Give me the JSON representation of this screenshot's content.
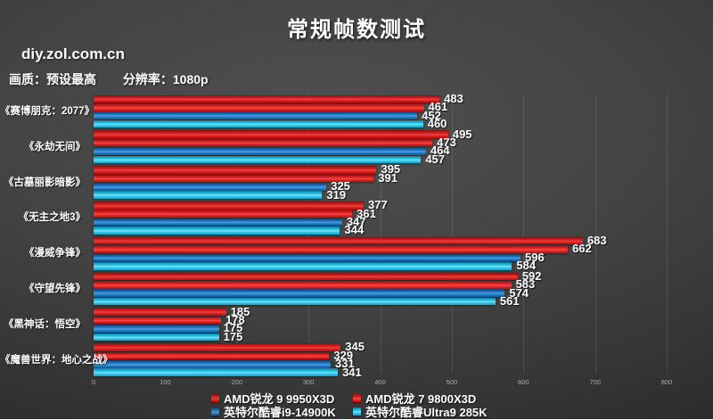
{
  "title": "常规帧数测试",
  "watermark": "diy.zol.com.cn",
  "settings": {
    "quality": "画质：预设最高",
    "resolution": "分辨率：1080p"
  },
  "chart_data": {
    "type": "bar",
    "orientation": "horizontal",
    "title": "常规帧数测试",
    "xlabel": "",
    "ylabel": "",
    "xlim": [
      0,
      800
    ],
    "x_ticks": [
      0,
      100,
      200,
      300,
      400,
      500,
      600,
      700,
      800
    ],
    "grid": "faint-vertical-gridlines",
    "legend_position": "bottom",
    "categories": [
      "《赛博朋克：2077》",
      "《永劫无间》",
      "《古墓丽影暗影》",
      "《无主之地3》",
      "《漫威争锋》",
      "《守望先锋》",
      "《黑神话：悟空》",
      "《魔兽世界：地心之战》"
    ],
    "series": [
      {
        "name": "AMD锐龙 9 9950X3D",
        "color": "#d81e1e",
        "values": [
          483,
          495,
          395,
          377,
          683,
          592,
          185,
          345
        ]
      },
      {
        "name": "AMD锐龙 7 9800X3D",
        "color": "#e42424",
        "values": [
          461,
          473,
          391,
          361,
          662,
          583,
          178,
          329
        ]
      },
      {
        "name": "英特尔酷睿i9-14900K",
        "color": "#1f7cc9",
        "values": [
          452,
          464,
          325,
          347,
          596,
          574,
          175,
          331
        ]
      },
      {
        "name": "英特尔酷睿Ultra9 285K",
        "color": "#2bc9ec",
        "values": [
          460,
          457,
          319,
          344,
          584,
          561,
          175,
          341
        ]
      }
    ]
  },
  "colors": {
    "background_center": "#505050",
    "background_edge": "#232323",
    "text": "#ffffff",
    "tick_text": "#ababab",
    "gridline": "#5a5a5a"
  }
}
